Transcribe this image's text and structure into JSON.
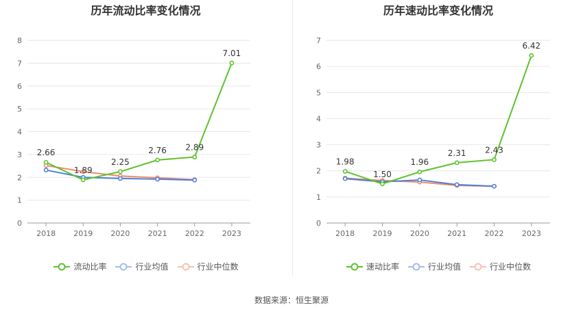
{
  "charts": [
    {
      "title": "历年流动比率变化情况",
      "legend": [
        "流动比率",
        "行业均值",
        "行业中位数"
      ]
    },
    {
      "title": "历年速动比率变化情况",
      "legend": [
        "速动比率",
        "行业均值",
        "行业中位数"
      ]
    }
  ],
  "source": "数据来源：恒生聚源",
  "colors": {
    "main": "#5cc22b",
    "mean": "#4d7fd8",
    "median": "#ee8a6b",
    "grid": "#e6e6e6",
    "axis": "#666666"
  },
  "chart_data": [
    {
      "type": "line",
      "title": "历年流动比率变化情况",
      "categories": [
        "2018",
        "2019",
        "2020",
        "2021",
        "2022",
        "2023"
      ],
      "ylim": [
        0,
        8
      ],
      "yticks": [
        0,
        1,
        2,
        3,
        4,
        5,
        6,
        7,
        8
      ],
      "grid": true,
      "legend_position": "bottom",
      "series": [
        {
          "name": "流动比率",
          "values": [
            2.66,
            1.89,
            2.25,
            2.76,
            2.89,
            7.01
          ],
          "labels": [
            "2.66",
            "1.89",
            "2.25",
            "2.76",
            "2.89",
            "7.01"
          ]
        },
        {
          "name": "行业均值",
          "values": [
            2.32,
            2.0,
            1.95,
            1.92,
            1.88,
            null
          ]
        },
        {
          "name": "行业中位数",
          "values": [
            2.52,
            2.25,
            2.06,
            1.98,
            1.9,
            null
          ]
        }
      ]
    },
    {
      "type": "line",
      "title": "历年速动比率变化情况",
      "categories": [
        "2018",
        "2019",
        "2020",
        "2021",
        "2022",
        "2023"
      ],
      "ylim": [
        0,
        7
      ],
      "yticks": [
        0,
        1,
        2,
        3,
        4,
        5,
        6,
        7
      ],
      "grid": true,
      "legend_position": "bottom",
      "series": [
        {
          "name": "速动比率",
          "values": [
            1.98,
            1.5,
            1.96,
            2.31,
            2.43,
            6.42
          ],
          "labels": [
            "1.98",
            "1.50",
            "1.96",
            "2.31",
            "2.43",
            "6.42"
          ]
        },
        {
          "name": "行业均值",
          "values": [
            1.7,
            1.58,
            1.65,
            1.47,
            1.41,
            null
          ]
        },
        {
          "name": "行业中位数",
          "values": [
            1.72,
            1.63,
            1.57,
            1.44,
            1.41,
            null
          ]
        }
      ]
    }
  ]
}
